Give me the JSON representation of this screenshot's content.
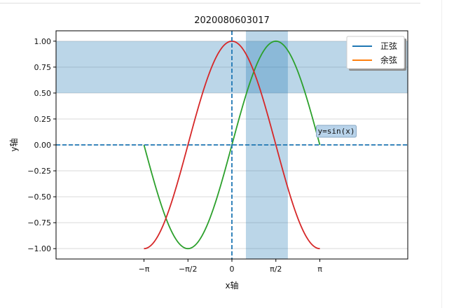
{
  "chart_data": {
    "type": "line",
    "title": "2020080603017",
    "xlabel": "x轴",
    "ylabel": "y轴",
    "x_range": [
      -3.1416,
      3.1416
    ],
    "xlim": [
      -6.2832,
      6.2832
    ],
    "ylim": [
      -1.1,
      1.1
    ],
    "x_ticks": [
      {
        "value": -3.1416,
        "label": "−π"
      },
      {
        "value": -1.5708,
        "label": "−π/2"
      },
      {
        "value": 0,
        "label": "0"
      },
      {
        "value": 1.5708,
        "label": "π/2"
      },
      {
        "value": 3.1416,
        "label": "π"
      }
    ],
    "y_ticks": [
      {
        "value": 1.0,
        "label": "1.00"
      },
      {
        "value": 0.75,
        "label": "0.75"
      },
      {
        "value": 0.5,
        "label": "0.50"
      },
      {
        "value": 0.25,
        "label": "0.25"
      },
      {
        "value": 0.0,
        "label": "0.00"
      },
      {
        "value": -0.25,
        "label": "−0.25"
      },
      {
        "value": -0.5,
        "label": "−0.50"
      },
      {
        "value": -0.75,
        "label": "−0.75"
      },
      {
        "value": -1.0,
        "label": "−1.00"
      }
    ],
    "grid_y": true,
    "series": [
      {
        "name": "正弦",
        "function": "sin(x)",
        "legend_color": "#1f77b4",
        "color": "#2ca02c"
      },
      {
        "name": "余弦",
        "function": "cos(x)",
        "legend_color": "#ff7f0e",
        "color": "#d62728"
      }
    ],
    "legend": {
      "placement": "top-right"
    },
    "h_span": {
      "y0": 0.5,
      "y1": 1.0,
      "color": "#1f77b4"
    },
    "v_span": {
      "x0": 0.5,
      "x1": 2.0,
      "color": "#1f77b4"
    },
    "ref_lines": [
      {
        "orientation": "vertical",
        "x": 0,
        "color": "#1f77b4",
        "style": "dashed"
      },
      {
        "orientation": "horizontal",
        "y": 0,
        "color": "#1f77b4",
        "style": "dashed"
      }
    ],
    "annotation": {
      "text": "y=sin(x)",
      "x": 3.1416,
      "y": 0.0
    }
  }
}
